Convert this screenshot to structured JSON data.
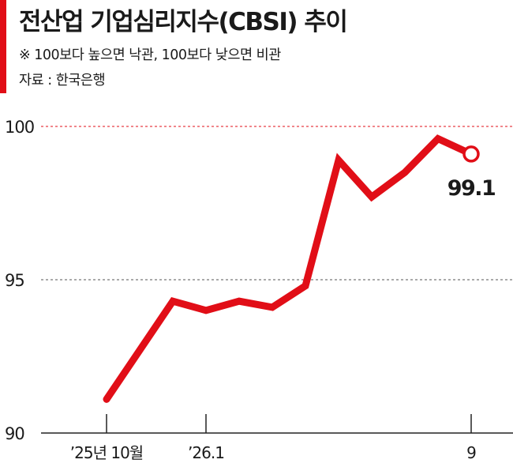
{
  "header": {
    "title": "전산업 기업심리지수(CBSI) 추이",
    "note": "※ 100보다 높으면 낙관, 100보다 낮으면 비관",
    "source": "자료 : 한국은행"
  },
  "colors": {
    "accent": "#e10e17",
    "line": "#e10e17",
    "grid_ref": "#e10e17",
    "grid": "#555555",
    "axis": "#222222"
  },
  "chart_data": {
    "type": "line",
    "title": "",
    "xlabel": "",
    "ylabel": "",
    "ylim": [
      90,
      100
    ],
    "yticks": [
      90,
      95,
      100
    ],
    "grid": true,
    "x_tick_labels": [
      {
        "label": "’25년 10월",
        "index": 0
      },
      {
        "label": "’26.1",
        "index": 3
      },
      {
        "label": "9",
        "index": 11
      }
    ],
    "series": [
      {
        "values": [
          91.1,
          92.7,
          94.3,
          94.0,
          94.3,
          94.1,
          94.8,
          98.9,
          97.7,
          98.5,
          99.6,
          99.1
        ]
      }
    ],
    "last_value_label": "99.1"
  }
}
